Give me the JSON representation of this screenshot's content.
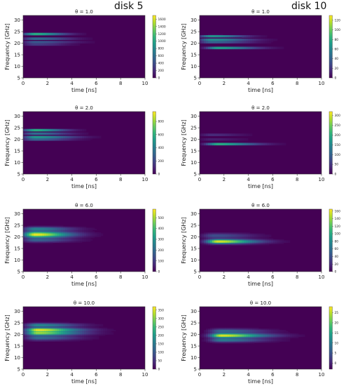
{
  "columns": [
    {
      "title": "disk 5"
    },
    {
      "title": "disk 10"
    }
  ],
  "chart_data": [
    {
      "type": "heatmap",
      "title": "θ = 1.0",
      "xlabel": "time [ns]",
      "ylabel": "Frequency [GHz]",
      "xlim": [
        0,
        10
      ],
      "ylim": [
        5,
        32
      ],
      "xticks": [
        "0",
        "2",
        "4",
        "6",
        "8",
        "10"
      ],
      "yticks": [
        "5",
        "10",
        "15",
        "20",
        "25",
        "30"
      ],
      "colorbar": {
        "min": 0,
        "max": 1700,
        "ticks": [
          "0",
          "200",
          "400",
          "600",
          "800",
          "1000",
          "1200",
          "1400",
          "1600"
        ]
      },
      "bands": [
        {
          "freq": 24,
          "width": 0.35,
          "t_peak": 1.0,
          "t_extent": 2.3,
          "intensity": 1.0
        },
        {
          "freq": 22,
          "width": 0.35,
          "t_peak": 1.0,
          "t_extent": 2.8,
          "intensity": 0.55
        },
        {
          "freq": 20.5,
          "width": 0.35,
          "t_peak": 1.0,
          "t_extent": 3.0,
          "intensity": 0.45
        },
        {
          "freq": 19.5,
          "width": 0.3,
          "t_peak": 1.0,
          "t_extent": 2.5,
          "intensity": 0.35
        }
      ]
    },
    {
      "type": "heatmap",
      "title": "θ = 1.0",
      "xlabel": "time [ns]",
      "ylabel": "Frequency [GHz]",
      "xlim": [
        0,
        10
      ],
      "ylim": [
        5,
        32
      ],
      "xticks": [
        "0",
        "2",
        "4",
        "6",
        "8",
        "10"
      ],
      "yticks": [
        "5",
        "10",
        "15",
        "20",
        "25",
        "30"
      ],
      "colorbar": {
        "min": 0,
        "max": 130,
        "ticks": [
          "0",
          "20",
          "40",
          "60",
          "80",
          "100",
          "120"
        ]
      },
      "bands": [
        {
          "freq": 23,
          "width": 0.4,
          "t_peak": 1.0,
          "t_extent": 2.5,
          "intensity": 0.75
        },
        {
          "freq": 21.5,
          "width": 0.4,
          "t_peak": 1.0,
          "t_extent": 3.0,
          "intensity": 0.7
        },
        {
          "freq": 20.5,
          "width": 0.35,
          "t_peak": 1.0,
          "t_extent": 3.0,
          "intensity": 0.5
        },
        {
          "freq": 18.0,
          "width": 0.35,
          "t_peak": 1.5,
          "t_extent": 3.0,
          "intensity": 0.9
        }
      ]
    },
    {
      "type": "heatmap",
      "title": "θ = 2.0",
      "xlabel": "time [ns]",
      "ylabel": "Frequency [GHz]",
      "xlim": [
        0,
        10
      ],
      "ylim": [
        5,
        32
      ],
      "xticks": [
        "0",
        "2",
        "4",
        "6",
        "8",
        "10"
      ],
      "yticks": [
        "5",
        "10",
        "15",
        "20",
        "25",
        "30"
      ],
      "colorbar": {
        "min": 0,
        "max": 950,
        "ticks": [
          "0",
          "200",
          "400",
          "600",
          "800"
        ]
      },
      "bands": [
        {
          "freq": 24,
          "width": 0.35,
          "t_peak": 1.0,
          "t_extent": 2.3,
          "intensity": 1.0
        },
        {
          "freq": 22.5,
          "width": 0.35,
          "t_peak": 1.0,
          "t_extent": 2.6,
          "intensity": 0.6
        },
        {
          "freq": 21,
          "width": 0.45,
          "t_peak": 1.0,
          "t_extent": 3.0,
          "intensity": 0.7
        },
        {
          "freq": 20,
          "width": 0.35,
          "t_peak": 1.0,
          "t_extent": 2.7,
          "intensity": 0.5
        }
      ]
    },
    {
      "type": "heatmap",
      "title": "θ = 2.0",
      "xlabel": "time [ns]",
      "ylabel": "Frequency [GHz]",
      "xlim": [
        0,
        10
      ],
      "ylim": [
        5,
        32
      ],
      "xticks": [
        "0",
        "2",
        "4",
        "6",
        "8",
        "10"
      ],
      "yticks": [
        "5",
        "10",
        "15",
        "20",
        "25",
        "30"
      ],
      "colorbar": {
        "min": 0,
        "max": 320,
        "ticks": [
          "0",
          "50",
          "100",
          "150",
          "200",
          "250",
          "300"
        ]
      },
      "bands": [
        {
          "freq": 18,
          "width": 0.35,
          "t_peak": 1.5,
          "t_extent": 3.0,
          "intensity": 1.0
        },
        {
          "freq": 22,
          "width": 0.5,
          "t_peak": 1.0,
          "t_extent": 2.5,
          "intensity": 0.15
        },
        {
          "freq": 20,
          "width": 0.4,
          "t_peak": 1.0,
          "t_extent": 2.5,
          "intensity": 0.12
        }
      ]
    },
    {
      "type": "heatmap",
      "title": "θ = 6.0",
      "xlabel": "time [ns]",
      "ylabel": "Frequency [GHz]",
      "xlim": [
        0,
        10
      ],
      "ylim": [
        5,
        32
      ],
      "xticks": [
        "0",
        "2",
        "4",
        "6",
        "8",
        "10"
      ],
      "yticks": [
        "5",
        "10",
        "15",
        "20",
        "25",
        "30"
      ],
      "colorbar": {
        "min": 0,
        "max": 580,
        "ticks": [
          "0",
          "100",
          "200",
          "300",
          "400",
          "500"
        ]
      },
      "bands": [
        {
          "freq": 21,
          "width": 1.3,
          "t_peak": 1.0,
          "t_extent": 2.8,
          "intensity": 1.0
        },
        {
          "freq": 23.5,
          "width": 0.8,
          "t_peak": 1.0,
          "t_extent": 2.8,
          "intensity": 0.45
        },
        {
          "freq": 18.5,
          "width": 0.8,
          "t_peak": 1.0,
          "t_extent": 2.8,
          "intensity": 0.3
        }
      ]
    },
    {
      "type": "heatmap",
      "title": "θ = 6.0",
      "xlabel": "time [ns]",
      "ylabel": "Frequency [GHz]",
      "xlim": [
        0,
        10
      ],
      "ylim": [
        5,
        32
      ],
      "xticks": [
        "0",
        "2",
        "4",
        "6",
        "8",
        "10"
      ],
      "yticks": [
        "5",
        "10",
        "15",
        "20",
        "25",
        "30"
      ],
      "colorbar": {
        "min": 0,
        "max": 165,
        "ticks": [
          "0",
          "20",
          "40",
          "60",
          "80",
          "100",
          "120",
          "140",
          "160"
        ]
      },
      "bands": [
        {
          "freq": 18,
          "width": 0.9,
          "t_peak": 1.5,
          "t_extent": 3.0,
          "intensity": 1.0
        },
        {
          "freq": 20.5,
          "width": 1.0,
          "t_peak": 1.2,
          "t_extent": 3.0,
          "intensity": 0.25
        }
      ]
    },
    {
      "type": "heatmap",
      "title": "θ = 10.0",
      "xlabel": "time [ns]",
      "ylabel": "Frequency [GHz]",
      "xlim": [
        0,
        10
      ],
      "ylim": [
        5,
        32
      ],
      "xticks": [
        "0",
        "2",
        "4",
        "6",
        "8",
        "10"
      ],
      "yticks": [
        "5",
        "10",
        "15",
        "20",
        "25",
        "30"
      ],
      "colorbar": {
        "min": 0,
        "max": 370,
        "ticks": [
          "0",
          "50",
          "100",
          "150",
          "200",
          "250",
          "300",
          "350"
        ]
      },
      "bands": [
        {
          "freq": 22,
          "width": 0.8,
          "t_peak": 1.2,
          "t_extent": 3.2,
          "intensity": 1.0
        },
        {
          "freq": 20.5,
          "width": 0.8,
          "t_peak": 1.2,
          "t_extent": 3.2,
          "intensity": 0.85
        },
        {
          "freq": 24,
          "width": 0.8,
          "t_peak": 1.2,
          "t_extent": 3.0,
          "intensity": 0.5
        },
        {
          "freq": 18.5,
          "width": 1.0,
          "t_peak": 1.2,
          "t_extent": 3.0,
          "intensity": 0.35
        }
      ]
    },
    {
      "type": "heatmap",
      "title": "θ = 10.0",
      "xlabel": "time [ns]",
      "ylabel": "Frequency [GHz]",
      "xlim": [
        0,
        10
      ],
      "ylim": [
        5,
        32
      ],
      "xticks": [
        "0",
        "2",
        "4",
        "6",
        "8",
        "10"
      ],
      "yticks": [
        "5",
        "10",
        "15",
        "20",
        "25",
        "30"
      ],
      "colorbar": {
        "min": -3,
        "max": 28,
        "ticks": [
          "-5",
          "0",
          "5",
          "10",
          "15",
          "20",
          "25"
        ]
      },
      "bands": [
        {
          "freq": 19.5,
          "width": 0.9,
          "t_peak": 1.8,
          "t_extent": 3.5,
          "intensity": 1.0
        },
        {
          "freq": 17.5,
          "width": 0.8,
          "t_peak": 1.8,
          "t_extent": 3.2,
          "intensity": 0.45
        },
        {
          "freq": 21.5,
          "width": 0.9,
          "t_peak": 1.8,
          "t_extent": 3.2,
          "intensity": 0.35
        }
      ]
    }
  ]
}
